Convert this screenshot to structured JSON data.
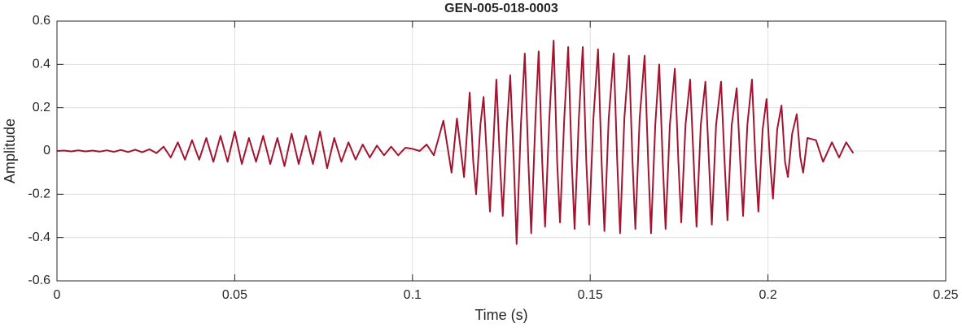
{
  "chart_data": {
    "type": "line",
    "title": "GEN-005-018-0003",
    "x_label": "Time (s)",
    "y_label": "Amplitude",
    "xlim": [
      0,
      0.25
    ],
    "xticks": [
      0,
      0.05,
      0.1,
      0.15,
      0.2,
      0.25
    ],
    "ylim": [
      -0.6,
      0.6
    ],
    "yticks": [
      -0.6,
      -0.4,
      -0.2,
      0,
      0.2,
      0.4,
      0.6
    ],
    "grid": true,
    "series": [
      {
        "color": "#a2142f",
        "x": [
          0,
          0.002,
          0.004,
          0.006,
          0.008,
          0.01,
          0.012,
          0.014,
          0.016,
          0.018,
          0.02,
          0.022,
          0.024,
          0.026,
          0.028,
          0.03,
          0.032,
          0.034,
          0.036,
          0.038,
          0.04,
          0.042,
          0.044,
          0.046,
          0.048,
          0.05,
          0.052,
          0.054,
          0.056,
          0.058,
          0.06,
          0.062,
          0.064,
          0.066,
          0.068,
          0.07,
          0.072,
          0.074,
          0.076,
          0.078,
          0.08,
          0.082,
          0.084,
          0.086,
          0.088,
          0.09,
          0.092,
          0.094,
          0.096,
          0.098,
          0.1,
          0.102,
          0.104,
          0.106,
          0.1087,
          0.111,
          0.1125,
          0.1145,
          0.1161,
          0.1171,
          0.1179,
          0.1191,
          0.12,
          0.121,
          0.1218,
          0.123,
          0.1236,
          0.1246,
          0.1254,
          0.1266,
          0.1275,
          0.1285,
          0.1293,
          0.1305,
          0.1316,
          0.1326,
          0.1334,
          0.1346,
          0.1355,
          0.1365,
          0.1373,
          0.1385,
          0.1397,
          0.1407,
          0.1415,
          0.1427,
          0.1438,
          0.1448,
          0.1456,
          0.1468,
          0.1479,
          0.1489,
          0.1497,
          0.1509,
          0.1522,
          0.1532,
          0.154,
          0.1552,
          0.1566,
          0.1576,
          0.1584,
          0.1596,
          0.1609,
          0.1619,
          0.1627,
          0.1639,
          0.1653,
          0.1663,
          0.1671,
          0.1683,
          0.1694,
          0.1704,
          0.1712,
          0.1724,
          0.1738,
          0.1748,
          0.1756,
          0.1768,
          0.1781,
          0.1791,
          0.1799,
          0.1811,
          0.1824,
          0.1834,
          0.1842,
          0.1854,
          0.1868,
          0.1878,
          0.1886,
          0.1898,
          0.1912,
          0.1922,
          0.193,
          0.1942,
          0.1955,
          0.1965,
          0.1973,
          0.1985,
          0.1996,
          0.2006,
          0.2014,
          0.2026,
          0.2038,
          0.2048,
          0.2056,
          0.2068,
          0.2081,
          0.2091,
          0.2099,
          0.2111,
          0.2135,
          0.2155,
          0.218,
          0.22,
          0.222,
          0.224
        ],
        "values": [
          0,
          0.002,
          -0.002,
          0.003,
          -0.002,
          0.002,
          -0.003,
          0.003,
          -0.004,
          0.005,
          -0.005,
          0.006,
          -0.006,
          0.008,
          -0.01,
          0.02,
          -0.03,
          0.04,
          -0.04,
          0.05,
          -0.04,
          0.06,
          -0.05,
          0.07,
          -0.05,
          0.09,
          -0.06,
          0.06,
          -0.05,
          0.07,
          -0.06,
          0.06,
          -0.07,
          0.08,
          -0.06,
          0.07,
          -0.06,
          0.09,
          -0.08,
          0.06,
          -0.05,
          0.04,
          -0.04,
          0.03,
          -0.03,
          0.025,
          -0.02,
          0.02,
          -0.02,
          0.015,
          0.01,
          0,
          0.03,
          -0.02,
          0.14,
          -0.1,
          0.15,
          -0.12,
          0.27,
          -0.05,
          -0.2,
          0.12,
          0.25,
          -0.05,
          -0.28,
          0.12,
          0.33,
          -0.05,
          -0.3,
          0.12,
          0.35,
          -0.05,
          -0.43,
          0.12,
          0.45,
          -0.05,
          -0.38,
          0.15,
          0.46,
          -0.05,
          -0.35,
          0.15,
          0.51,
          -0.05,
          -0.33,
          0.15,
          0.48,
          -0.05,
          -0.36,
          0.15,
          0.48,
          -0.05,
          -0.34,
          0.15,
          0.47,
          -0.05,
          -0.37,
          0.15,
          0.45,
          -0.05,
          -0.38,
          0.15,
          0.44,
          -0.05,
          -0.36,
          0.15,
          0.44,
          -0.05,
          -0.38,
          0.12,
          0.4,
          -0.05,
          -0.36,
          0.12,
          0.38,
          -0.05,
          -0.33,
          0.12,
          0.33,
          -0.05,
          -0.35,
          0.12,
          0.32,
          -0.05,
          -0.34,
          0.12,
          0.32,
          -0.05,
          -0.32,
          0.12,
          0.29,
          -0.05,
          -0.3,
          0.12,
          0.33,
          -0.05,
          -0.28,
          0.1,
          0.24,
          -0.05,
          -0.22,
          0.1,
          0.21,
          -0.05,
          -0.12,
          0.08,
          0.17,
          -0.03,
          -0.1,
          0.06,
          0.05,
          -0.05,
          0.04,
          -0.03,
          0.04,
          -0.01
        ]
      }
    ]
  }
}
